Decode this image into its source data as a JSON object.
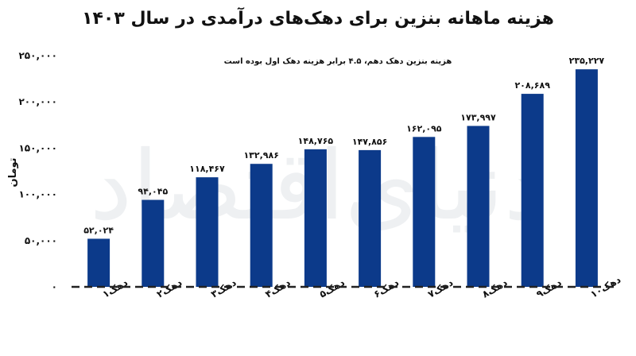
{
  "chart_data": {
    "type": "bar",
    "title": "هزینه ماهانه بنزین برای دهک‌های درآمدی در سال ۱۴۰۳",
    "annotation": "هزینه بنزین دهک دهم، ۴.۵ برابر هزینه دهک اول بوده است",
    "ylabel": "تومان",
    "xlabel": "",
    "ylim": [
      0,
      250000
    ],
    "yticks": [
      0,
      50000,
      100000,
      150000,
      200000,
      250000
    ],
    "ytick_labels": [
      "۰",
      "۵۰,۰۰۰",
      "۱۰۰,۰۰۰",
      "۱۵۰,۰۰۰",
      "۲۰۰,۰۰۰",
      "۲۵۰,۰۰۰"
    ],
    "categories": [
      "دهک۱",
      "دهک۲",
      "دهک۳",
      "دهک۴",
      "دهک۵",
      "دهک۶",
      "دهک۷",
      "دهک۸",
      "دهک۹",
      "دهک۱۰"
    ],
    "values": [
      52024,
      94045,
      118467,
      132986,
      148765,
      147856,
      162095,
      173997,
      208689,
      235227
    ],
    "value_labels": [
      "۵۲,۰۲۴",
      "۹۴,۰۴۵",
      "۱۱۸,۴۶۷",
      "۱۳۲,۹۸۶",
      "۱۴۸,۷۶۵",
      "۱۴۷,۸۵۶",
      "۱۶۲,۰۹۵",
      "۱۷۳,۹۹۷",
      "۲۰۸,۶۸۹",
      "۲۳۵,۲۲۷"
    ],
    "bar_color": "#0c3a8a",
    "grid": false,
    "legend": "none"
  }
}
